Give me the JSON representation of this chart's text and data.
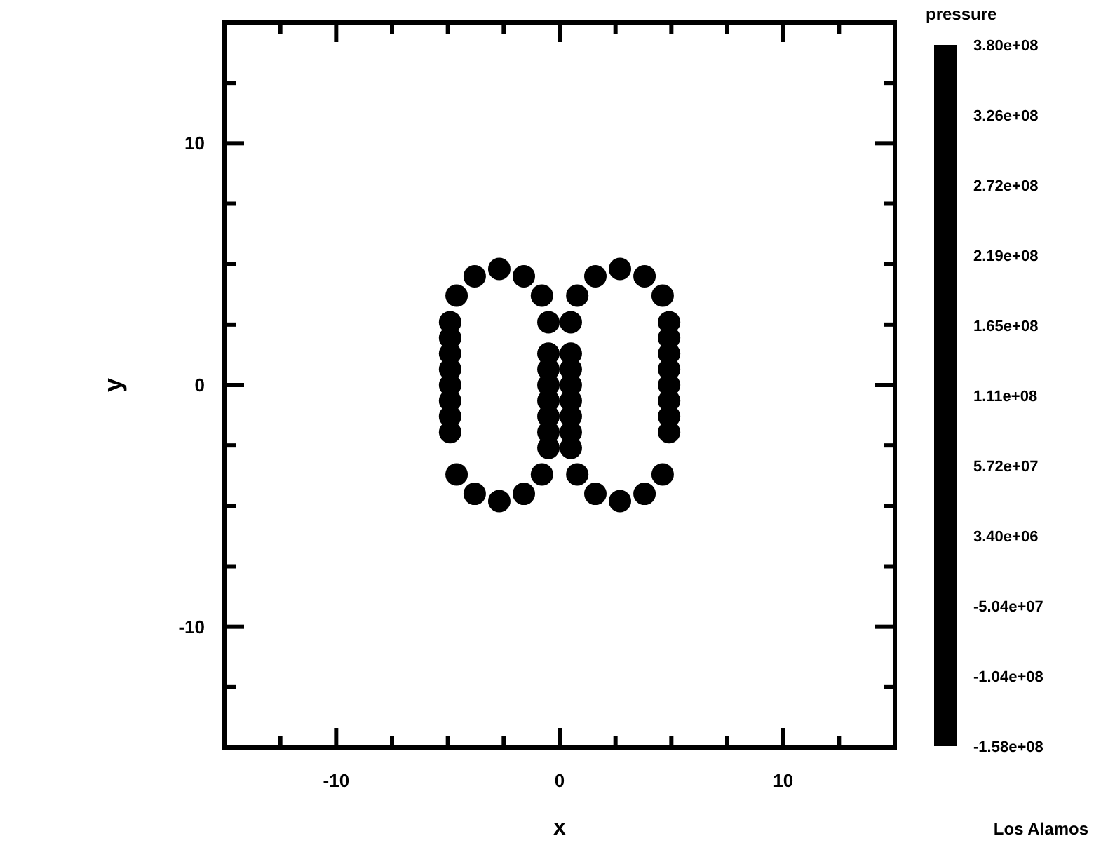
{
  "chart_data": {
    "type": "scatter",
    "xlabel": "x",
    "ylabel": "y",
    "clabel": "pressure",
    "xlim": [
      -15,
      15
    ],
    "ylim": [
      -15,
      15
    ],
    "xticks": [
      {
        "value": -15,
        "label": null
      },
      {
        "value": -12.5,
        "label": null
      },
      -10,
      {
        "value": -7.5,
        "label": null
      },
      {
        "value": -5,
        "label": null
      },
      {
        "value": -2.5,
        "label": null
      },
      0,
      {
        "value": 2.5,
        "label": null
      },
      {
        "value": 5,
        "label": null
      },
      {
        "value": 7.5,
        "label": null
      },
      10,
      {
        "value": 12.5,
        "label": null
      },
      {
        "value": 15,
        "label": null
      }
    ],
    "yticks": [
      {
        "value": -15,
        "label": null
      },
      {
        "value": -12.5,
        "label": null
      },
      -10,
      {
        "value": -7.5,
        "label": null
      },
      {
        "value": -5,
        "label": null
      },
      {
        "value": -2.5,
        "label": null
      },
      0,
      {
        "value": 2.5,
        "label": null
      },
      {
        "value": 5,
        "label": null
      },
      {
        "value": 7.5,
        "label": null
      },
      10,
      {
        "value": 12.5,
        "label": null
      },
      {
        "value": 15,
        "label": null
      }
    ],
    "marker": "circle",
    "grid": false,
    "annotations": [
      "Los Alamos",
      "3.80e+08",
      "3.26e+08",
      "2.72e+08",
      "2.19e+08",
      "1.65e+08",
      "1.11e+08",
      "5.72e+07",
      "3.40e+06",
      "-5.04e+07",
      "-1.04e+08",
      "-1.58e+08"
    ],
    "series": [
      {
        "color": "#000000",
        "x": [
          -0.5,
          -0.79,
          -1.6,
          -2.7,
          -3.8,
          -4.61,
          -4.9,
          -4.9,
          -4.9,
          -4.9,
          -4.9,
          -4.9,
          -4.9,
          -4.9,
          -4.61,
          -3.8,
          -2.7,
          -1.6,
          -0.79,
          -0.5,
          -0.5,
          -0.5,
          -0.5,
          -0.5,
          -0.5,
          -0.5,
          0.5,
          0.79,
          1.6,
          2.7,
          3.8,
          4.61,
          4.9,
          4.9,
          4.9,
          4.9,
          4.9,
          4.9,
          4.9,
          4.9,
          4.61,
          3.8,
          2.7,
          1.6,
          0.79,
          0.5,
          0.5,
          0.5,
          0.5,
          0.5,
          0.5,
          0.5
        ],
        "values": [
          2.6,
          3.7,
          4.5,
          4.8,
          4.5,
          3.7,
          2.6,
          1.95,
          1.3,
          0.65,
          0,
          -0.65,
          -1.3,
          -1.95,
          -3.7,
          -4.5,
          -4.8,
          -4.5,
          -3.7,
          -2.6,
          -1.95,
          -1.3,
          -0.65,
          0,
          0.65,
          1.3,
          2.6,
          3.7,
          4.5,
          4.8,
          4.5,
          3.7,
          2.6,
          1.95,
          1.3,
          0.65,
          0,
          -0.65,
          -1.3,
          -1.95,
          -3.7,
          -4.5,
          -4.8,
          -4.5,
          -3.7,
          -2.6,
          -1.95,
          -1.3,
          -0.65,
          0,
          0.65,
          1.3
        ]
      }
    ]
  }
}
